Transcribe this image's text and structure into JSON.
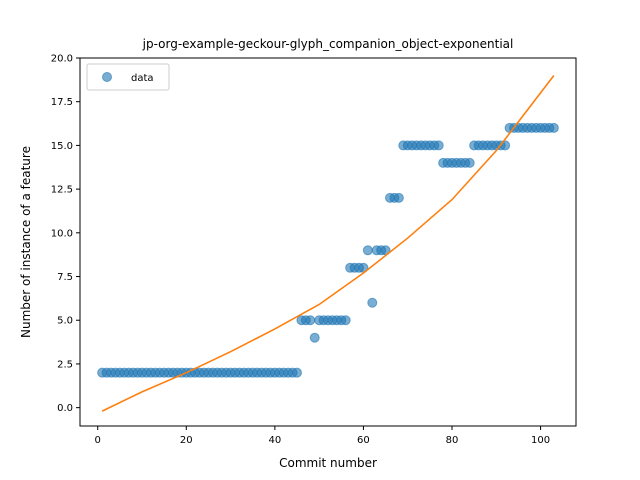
{
  "chart_data": {
    "type": "scatter",
    "title": "jp-org-example-geckour-glyph_companion_object-exponential",
    "xlabel": "Commit number",
    "ylabel": "Number of instance of a feature",
    "xlim": [
      -4,
      108
    ],
    "ylim": [
      -1.05,
      20.0
    ],
    "xticks": [
      0,
      20,
      40,
      60,
      80,
      100
    ],
    "yticks": [
      0.0,
      2.5,
      5.0,
      7.5,
      10.0,
      12.5,
      15.0,
      17.5,
      20.0
    ],
    "xtick_labels": [
      "0",
      "20",
      "40",
      "60",
      "80",
      "100"
    ],
    "ytick_labels": [
      "0.0",
      "2.5",
      "5.0",
      "7.5",
      "10.0",
      "12.5",
      "15.0",
      "17.5",
      "20.0"
    ],
    "grid": false,
    "legend": {
      "placement": "top-left",
      "entries": [
        "data"
      ]
    },
    "colors": {
      "scatter": "#1f77b4",
      "fit": "#ff7f0e"
    },
    "series": [
      {
        "name": "data",
        "kind": "scatter",
        "x": [
          1,
          2,
          3,
          4,
          5,
          6,
          7,
          8,
          9,
          10,
          11,
          12,
          13,
          14,
          15,
          16,
          17,
          18,
          19,
          20,
          21,
          22,
          23,
          24,
          25,
          26,
          27,
          28,
          29,
          30,
          31,
          32,
          33,
          34,
          35,
          36,
          37,
          38,
          39,
          40,
          41,
          42,
          43,
          44,
          45,
          46,
          47,
          48,
          49,
          50,
          51,
          52,
          53,
          54,
          55,
          56,
          57,
          58,
          59,
          60,
          61,
          62,
          63,
          64,
          65,
          66,
          67,
          68,
          69,
          70,
          71,
          72,
          73,
          74,
          75,
          76,
          77,
          78,
          79,
          80,
          81,
          82,
          83,
          84,
          85,
          86,
          87,
          88,
          89,
          90,
          91,
          92,
          93,
          94,
          95,
          96,
          97,
          98,
          99,
          100,
          101,
          102,
          103
        ],
        "y": [
          2,
          2,
          2,
          2,
          2,
          2,
          2,
          2,
          2,
          2,
          2,
          2,
          2,
          2,
          2,
          2,
          2,
          2,
          2,
          2,
          2,
          2,
          2,
          2,
          2,
          2,
          2,
          2,
          2,
          2,
          2,
          2,
          2,
          2,
          2,
          2,
          2,
          2,
          2,
          2,
          2,
          2,
          2,
          2,
          2,
          5,
          5,
          5,
          4,
          5,
          5,
          5,
          5,
          5,
          5,
          5,
          8,
          8,
          8,
          8,
          9,
          6,
          9,
          9,
          9,
          12,
          12,
          12,
          15,
          15,
          15,
          15,
          15,
          15,
          15,
          15,
          15,
          14,
          14,
          14,
          14,
          14,
          14,
          14,
          15,
          15,
          15,
          15,
          15,
          15,
          15,
          15,
          16,
          16,
          16,
          16,
          16,
          16,
          16,
          16,
          16,
          16,
          16
        ]
      },
      {
        "name": "",
        "kind": "line",
        "x": [
          1,
          10,
          20,
          30,
          40,
          50,
          60,
          70,
          80,
          90,
          103
        ],
        "y": [
          -0.2,
          0.9,
          2.0,
          3.2,
          4.5,
          5.9,
          7.7,
          9.7,
          11.9,
          14.7,
          19.0
        ]
      }
    ]
  }
}
